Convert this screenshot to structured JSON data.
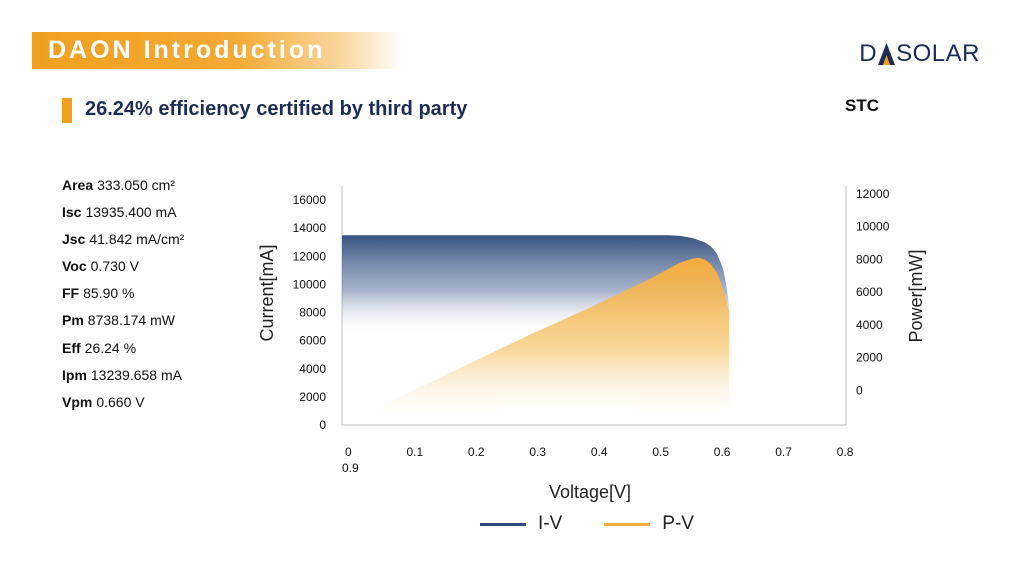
{
  "header": {
    "title": "DAON Introduction",
    "logo_text": "DASOLAR"
  },
  "subtitle": "26.24% efficiency certified by third party",
  "condition_label": "STC",
  "parameters": [
    {
      "label": "Area",
      "value": "333.050 cm²"
    },
    {
      "label": "Isc",
      "value": "13935.400 mA"
    },
    {
      "label": "Jsc",
      "value": "41.842 mA/cm²"
    },
    {
      "label": "Voc",
      "value": "0.730 V"
    },
    {
      "label": "FF",
      "value": "85.90 %"
    },
    {
      "label": "Pm",
      "value": "8738.174 mW"
    },
    {
      "label": "Eff",
      "value": "26.24 %"
    },
    {
      "label": "Ipm",
      "value": "13239.658 mA"
    },
    {
      "label": "Vpm",
      "value": "0.660 V"
    }
  ],
  "colors": {
    "accent": "#f0a01f",
    "navy": "#1c2c57",
    "iv": "#2d4a7c",
    "pv": "#f5ad3c"
  },
  "chart_data": {
    "type": "area",
    "xlabel": "Voltage[V]",
    "ylabel": "Current[mA]",
    "y2label": "Power[mW]",
    "x_ticks": [
      "0",
      "0.1",
      "0.2",
      "0.3",
      "0.4",
      "0.5",
      "0.6",
      "0.7",
      "0.8"
    ],
    "x_extra_tick": "0.9",
    "y_ticks": [
      0,
      2000,
      4000,
      6000,
      8000,
      10000,
      12000,
      14000,
      16000
    ],
    "y2_ticks": [
      0,
      2000,
      4000,
      6000,
      8000,
      10000,
      12000
    ],
    "xlim": [
      0,
      0.82
    ],
    "ylim": [
      0,
      16000
    ],
    "y2lim": [
      -2000,
      12000
    ],
    "grid": false,
    "legend_position": "bottom",
    "series": [
      {
        "name": "I-V",
        "axis": "left",
        "x": [
          0,
          0.05,
          0.1,
          0.2,
          0.3,
          0.4,
          0.5,
          0.53,
          0.55,
          0.57,
          0.59,
          0.6,
          0.61,
          0.62,
          0.625,
          0.63
        ],
        "values": [
          13500,
          13500,
          13500,
          13500,
          13500,
          13500,
          13500,
          13500,
          13450,
          13300,
          13000,
          12700,
          12200,
          11100,
          10000,
          8500
        ]
      },
      {
        "name": "P-V",
        "axis": "right",
        "x": [
          0,
          0.05,
          0.1,
          0.2,
          0.3,
          0.4,
          0.5,
          0.53,
          0.55,
          0.57,
          0.58,
          0.59,
          0.6,
          0.61,
          0.62,
          0.63
        ],
        "values": [
          -2000,
          -1200,
          -300,
          1500,
          3300,
          5000,
          6800,
          7400,
          7800,
          8050,
          8100,
          8000,
          7700,
          7200,
          6200,
          4800
        ]
      }
    ]
  }
}
